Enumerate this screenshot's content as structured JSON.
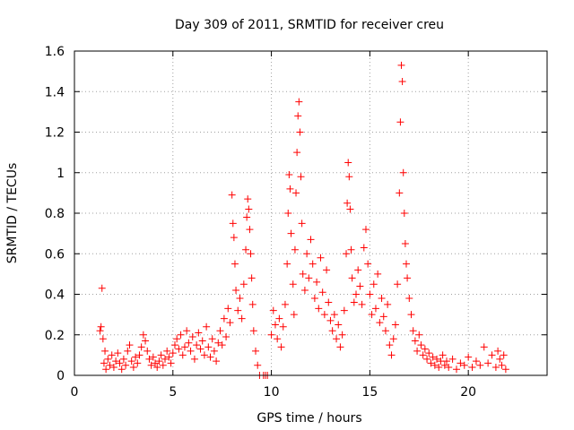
{
  "chart_data": {
    "type": "scatter",
    "title": "Day 309 of 2011, SRMTID for receiver creu",
    "xlabel": "GPS time / hours",
    "ylabel": "SRMTID / TECUs",
    "xlim": [
      0,
      24
    ],
    "ylim": [
      0,
      1.6
    ],
    "xticks": [
      0,
      5,
      10,
      15,
      20
    ],
    "xtick_labels": [
      "0",
      "5",
      "10",
      "15",
      "20"
    ],
    "yticks": [
      0,
      0.2,
      0.4,
      0.6,
      0.8,
      1.0,
      1.2,
      1.4,
      1.6
    ],
    "ytick_labels": [
      "0",
      "0.2",
      "0.4",
      "0.6",
      "0.8",
      "1",
      "1.2",
      "1.4",
      "1.6"
    ],
    "grid": true,
    "marker": "plus",
    "series": [
      {
        "name": "SRMTID",
        "color": "#ff0000",
        "points": [
          [
            1.3,
            0.22
          ],
          [
            1.35,
            0.24
          ],
          [
            1.4,
            0.43
          ],
          [
            1.45,
            0.18
          ],
          [
            1.5,
            0.06
          ],
          [
            1.55,
            0.12
          ],
          [
            1.6,
            0.03
          ],
          [
            1.7,
            0.08
          ],
          [
            1.8,
            0.05
          ],
          [
            1.9,
            0.1
          ],
          [
            2.0,
            0.04
          ],
          [
            2.1,
            0.07
          ],
          [
            2.2,
            0.11
          ],
          [
            2.3,
            0.06
          ],
          [
            2.4,
            0.03
          ],
          [
            2.5,
            0.08
          ],
          [
            2.6,
            0.05
          ],
          [
            2.7,
            0.12
          ],
          [
            2.8,
            0.15
          ],
          [
            2.9,
            0.07
          ],
          [
            3.0,
            0.04
          ],
          [
            3.1,
            0.09
          ],
          [
            3.2,
            0.06
          ],
          [
            3.3,
            0.1
          ],
          [
            3.4,
            0.14
          ],
          [
            3.5,
            0.2
          ],
          [
            3.6,
            0.17
          ],
          [
            3.7,
            0.12
          ],
          [
            3.8,
            0.08
          ],
          [
            3.9,
            0.05
          ],
          [
            4.0,
            0.09
          ],
          [
            4.1,
            0.06
          ],
          [
            4.2,
            0.04
          ],
          [
            4.3,
            0.07
          ],
          [
            4.4,
            0.1
          ],
          [
            4.5,
            0.05
          ],
          [
            4.6,
            0.08
          ],
          [
            4.7,
            0.12
          ],
          [
            4.8,
            0.09
          ],
          [
            4.9,
            0.06
          ],
          [
            5.0,
            0.11
          ],
          [
            5.1,
            0.15
          ],
          [
            5.2,
            0.18
          ],
          [
            5.3,
            0.13
          ],
          [
            5.4,
            0.2
          ],
          [
            5.5,
            0.1
          ],
          [
            5.6,
            0.14
          ],
          [
            5.7,
            0.22
          ],
          [
            5.8,
            0.16
          ],
          [
            5.9,
            0.12
          ],
          [
            6.0,
            0.19
          ],
          [
            6.1,
            0.08
          ],
          [
            6.2,
            0.15
          ],
          [
            6.3,
            0.21
          ],
          [
            6.4,
            0.13
          ],
          [
            6.5,
            0.17
          ],
          [
            6.6,
            0.1
          ],
          [
            6.7,
            0.24
          ],
          [
            6.8,
            0.14
          ],
          [
            6.9,
            0.09
          ],
          [
            7.0,
            0.18
          ],
          [
            7.1,
            0.12
          ],
          [
            7.2,
            0.07
          ],
          [
            7.3,
            0.16
          ],
          [
            7.4,
            0.22
          ],
          [
            7.5,
            0.15
          ],
          [
            7.6,
            0.28
          ],
          [
            7.7,
            0.19
          ],
          [
            7.8,
            0.33
          ],
          [
            7.9,
            0.26
          ],
          [
            8.0,
            0.89
          ],
          [
            8.05,
            0.75
          ],
          [
            8.1,
            0.68
          ],
          [
            8.15,
            0.55
          ],
          [
            8.2,
            0.42
          ],
          [
            8.3,
            0.32
          ],
          [
            8.4,
            0.38
          ],
          [
            8.5,
            0.28
          ],
          [
            8.6,
            0.45
          ],
          [
            8.7,
            0.62
          ],
          [
            8.75,
            0.78
          ],
          [
            8.8,
            0.87
          ],
          [
            8.85,
            0.82
          ],
          [
            8.9,
            0.72
          ],
          [
            8.95,
            0.6
          ],
          [
            9.0,
            0.48
          ],
          [
            9.05,
            0.35
          ],
          [
            9.1,
            0.22
          ],
          [
            9.2,
            0.12
          ],
          [
            9.3,
            0.05
          ],
          [
            9.4,
            0.0
          ],
          [
            9.6,
            0.0
          ],
          [
            9.7,
            0.0
          ],
          [
            9.8,
            0.0
          ],
          [
            10.0,
            0.2
          ],
          [
            10.1,
            0.32
          ],
          [
            10.2,
            0.25
          ],
          [
            10.3,
            0.18
          ],
          [
            10.4,
            0.28
          ],
          [
            10.5,
            0.14
          ],
          [
            10.6,
            0.24
          ],
          [
            10.7,
            0.35
          ],
          [
            10.8,
            0.55
          ],
          [
            10.85,
            0.8
          ],
          [
            10.9,
            0.99
          ],
          [
            10.95,
            0.92
          ],
          [
            11.0,
            0.7
          ],
          [
            11.1,
            0.45
          ],
          [
            11.15,
            0.3
          ],
          [
            11.2,
            0.62
          ],
          [
            11.25,
            0.9
          ],
          [
            11.3,
            1.1
          ],
          [
            11.35,
            1.28
          ],
          [
            11.4,
            1.35
          ],
          [
            11.45,
            1.2
          ],
          [
            11.5,
            0.98
          ],
          [
            11.55,
            0.75
          ],
          [
            11.6,
            0.5
          ],
          [
            11.7,
            0.42
          ],
          [
            11.8,
            0.6
          ],
          [
            11.9,
            0.48
          ],
          [
            12.0,
            0.67
          ],
          [
            12.1,
            0.55
          ],
          [
            12.2,
            0.38
          ],
          [
            12.3,
            0.46
          ],
          [
            12.4,
            0.33
          ],
          [
            12.5,
            0.58
          ],
          [
            12.6,
            0.41
          ],
          [
            12.7,
            0.3
          ],
          [
            12.8,
            0.52
          ],
          [
            12.9,
            0.36
          ],
          [
            13.0,
            0.27
          ],
          [
            13.1,
            0.22
          ],
          [
            13.2,
            0.3
          ],
          [
            13.3,
            0.18
          ],
          [
            13.4,
            0.25
          ],
          [
            13.5,
            0.14
          ],
          [
            13.6,
            0.2
          ],
          [
            13.7,
            0.32
          ],
          [
            13.8,
            0.6
          ],
          [
            13.85,
            0.85
          ],
          [
            13.9,
            1.05
          ],
          [
            13.95,
            0.98
          ],
          [
            14.0,
            0.82
          ],
          [
            14.05,
            0.62
          ],
          [
            14.1,
            0.48
          ],
          [
            14.2,
            0.36
          ],
          [
            14.3,
            0.4
          ],
          [
            14.4,
            0.52
          ],
          [
            14.5,
            0.44
          ],
          [
            14.6,
            0.35
          ],
          [
            14.7,
            0.63
          ],
          [
            14.8,
            0.72
          ],
          [
            14.9,
            0.55
          ],
          [
            15.0,
            0.4
          ],
          [
            15.1,
            0.3
          ],
          [
            15.2,
            0.45
          ],
          [
            15.3,
            0.33
          ],
          [
            15.4,
            0.5
          ],
          [
            15.5,
            0.26
          ],
          [
            15.6,
            0.38
          ],
          [
            15.7,
            0.29
          ],
          [
            15.8,
            0.22
          ],
          [
            15.9,
            0.35
          ],
          [
            16.0,
            0.15
          ],
          [
            16.1,
            0.1
          ],
          [
            16.2,
            0.18
          ],
          [
            16.3,
            0.25
          ],
          [
            16.4,
            0.45
          ],
          [
            16.5,
            0.9
          ],
          [
            16.55,
            1.25
          ],
          [
            16.6,
            1.53
          ],
          [
            16.65,
            1.45
          ],
          [
            16.7,
            1.0
          ],
          [
            16.75,
            0.8
          ],
          [
            16.8,
            0.65
          ],
          [
            16.85,
            0.55
          ],
          [
            16.9,
            0.48
          ],
          [
            17.0,
            0.38
          ],
          [
            17.1,
            0.3
          ],
          [
            17.2,
            0.22
          ],
          [
            17.3,
            0.17
          ],
          [
            17.4,
            0.12
          ],
          [
            17.5,
            0.2
          ],
          [
            17.6,
            0.15
          ],
          [
            17.7,
            0.1
          ],
          [
            17.8,
            0.13
          ],
          [
            17.9,
            0.08
          ],
          [
            18.0,
            0.11
          ],
          [
            18.1,
            0.06
          ],
          [
            18.2,
            0.09
          ],
          [
            18.3,
            0.05
          ],
          [
            18.4,
            0.08
          ],
          [
            18.5,
            0.04
          ],
          [
            18.6,
            0.07
          ],
          [
            18.7,
            0.1
          ],
          [
            18.8,
            0.05
          ],
          [
            18.9,
            0.07
          ],
          [
            19.0,
            0.04
          ],
          [
            19.2,
            0.08
          ],
          [
            19.4,
            0.03
          ],
          [
            19.6,
            0.06
          ],
          [
            19.8,
            0.05
          ],
          [
            20.0,
            0.09
          ],
          [
            20.2,
            0.04
          ],
          [
            20.4,
            0.07
          ],
          [
            20.6,
            0.05
          ],
          [
            20.8,
            0.14
          ],
          [
            21.0,
            0.06
          ],
          [
            21.2,
            0.1
          ],
          [
            21.4,
            0.04
          ],
          [
            21.5,
            0.12
          ],
          [
            21.6,
            0.08
          ],
          [
            21.7,
            0.05
          ],
          [
            21.8,
            0.1
          ],
          [
            21.9,
            0.03
          ]
        ]
      }
    ]
  }
}
